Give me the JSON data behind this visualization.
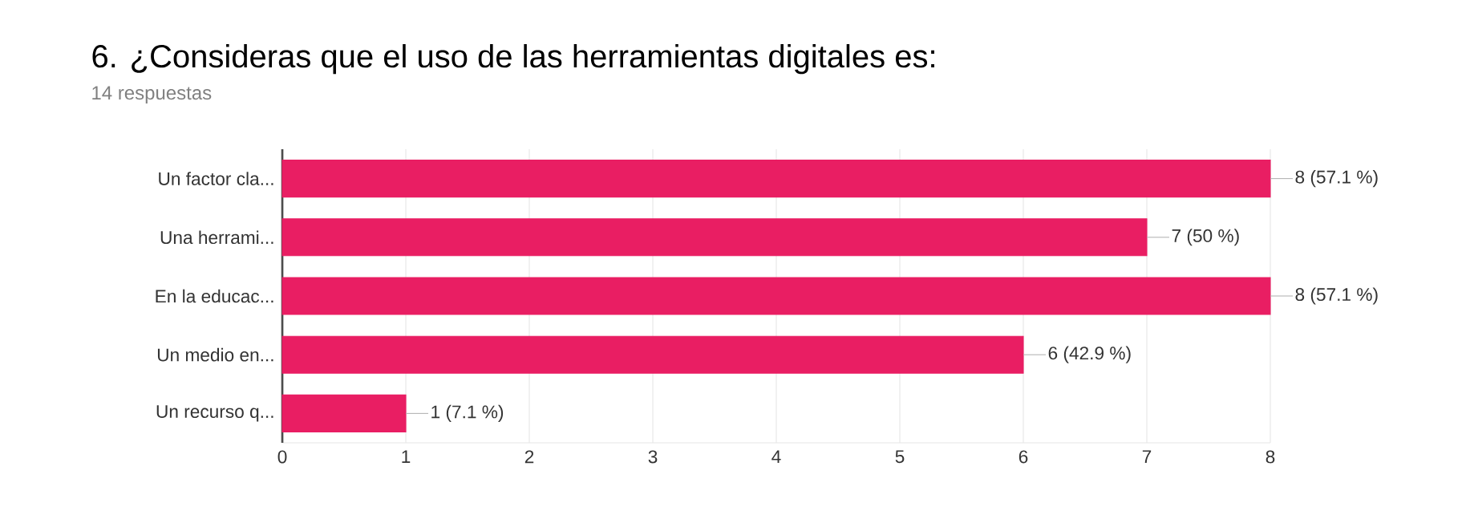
{
  "chart_data": {
    "type": "bar",
    "orientation": "horizontal",
    "title": "6. ¿Consideras que el uso de las herramientas digitales es:",
    "subtitle": "14 respuestas",
    "categories": [
      "Un factor cla...",
      "Una herrami...",
      "En la educac...",
      "Un medio en...",
      "Un recurso q..."
    ],
    "values": [
      8,
      7,
      8,
      6,
      1
    ],
    "color": "#e91e63",
    "value_labels": [
      "8 (57.1 %)",
      "7 (50 %)",
      "8 (57.1 %)",
      "6 (42.9 %)",
      "1 (7.1 %)"
    ],
    "xlim": [
      0,
      8
    ],
    "xticks": [
      0,
      1,
      2,
      3,
      4,
      5,
      6,
      7,
      8
    ],
    "grid": "x"
  }
}
